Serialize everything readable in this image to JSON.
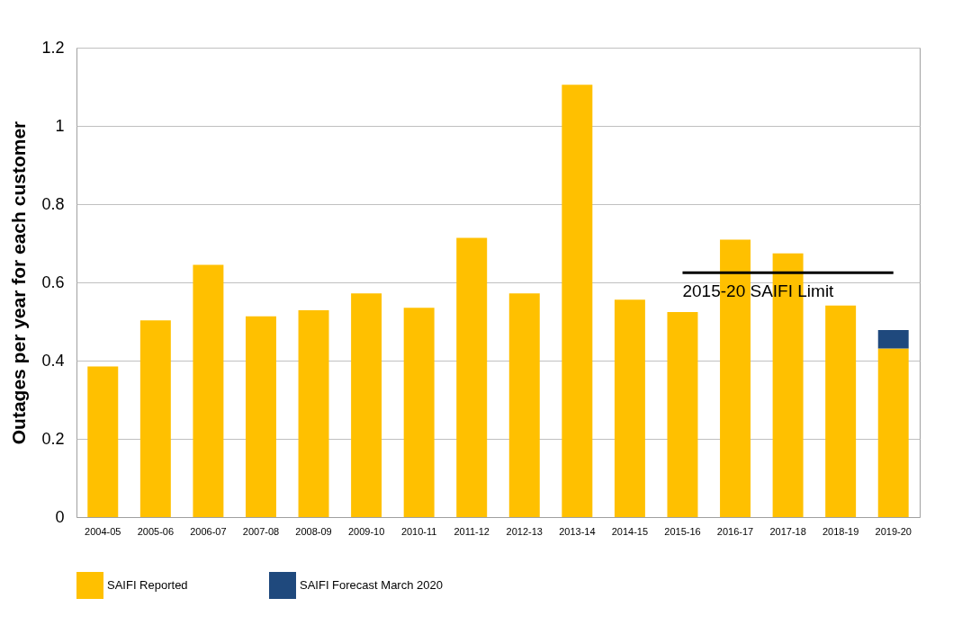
{
  "chart_data": {
    "type": "bar",
    "ylabel": "Outages per year for each customer",
    "categories": [
      "2004-05",
      "2005-06",
      "2006-07",
      "2007-08",
      "2008-09",
      "2009-10",
      "2010-11",
      "2011-12",
      "2012-13",
      "2013-14",
      "2014-15",
      "2015-16",
      "2016-17",
      "2017-18",
      "2018-19",
      "2019-20"
    ],
    "stacked": true,
    "series": [
      {
        "name": "SAIFI Reported",
        "color": "#ffc000",
        "values": [
          0.385,
          0.503,
          0.645,
          0.513,
          0.529,
          0.572,
          0.535,
          0.714,
          0.572,
          1.105,
          0.556,
          0.524,
          0.709,
          0.674,
          0.541,
          0.431
        ]
      },
      {
        "name": "SAIFI Forecast March 2020",
        "color": "#1f497d",
        "values": [
          null,
          null,
          null,
          null,
          null,
          null,
          null,
          null,
          null,
          null,
          null,
          null,
          null,
          null,
          null,
          0.047
        ]
      },
      {
        "name": "2015-20 SAIFI Limit",
        "type": "line",
        "color": "#000000",
        "values": [
          null,
          null,
          null,
          null,
          null,
          null,
          null,
          null,
          null,
          null,
          null,
          0.625,
          0.625,
          0.625,
          0.625,
          0.625
        ]
      }
    ],
    "ylim": [
      0,
      1.2
    ],
    "yticks": [
      0,
      0.2,
      0.4,
      0.6,
      0.8,
      1,
      1.2
    ],
    "grid": "y",
    "legend": "bottom",
    "marker": "none",
    "line_style": "solid"
  }
}
